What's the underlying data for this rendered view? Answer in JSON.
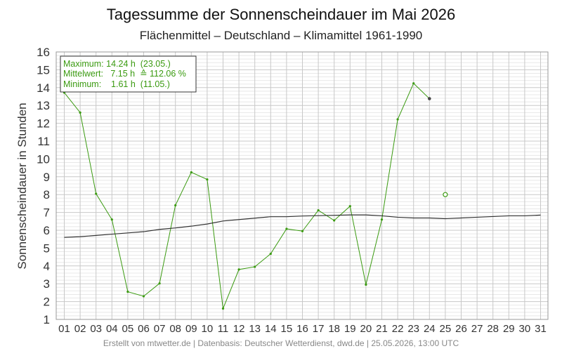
{
  "chart_data": {
    "type": "line",
    "title": "Tagessumme der Sonnenscheindauer im Mai 2026",
    "subtitle": "Flächenmittel – Deutschland – Klimamittel 1961-1990",
    "ylabel": "Sonnenscheindauer in Stunden",
    "xlabel": "",
    "ylim": [
      1,
      16
    ],
    "yticks": [
      1,
      2,
      3,
      4,
      5,
      6,
      7,
      8,
      9,
      10,
      11,
      12,
      13,
      14,
      15,
      16
    ],
    "categories": [
      "01",
      "02",
      "03",
      "04",
      "05",
      "06",
      "07",
      "08",
      "09",
      "10",
      "11",
      "12",
      "13",
      "14",
      "15",
      "16",
      "17",
      "18",
      "19",
      "20",
      "21",
      "22",
      "23",
      "24",
      "25",
      "26",
      "27",
      "28",
      "29",
      "30",
      "31"
    ],
    "grid": true,
    "series": [
      {
        "kind": "daily",
        "color": "#3a9a10",
        "values": [
          13.72,
          12.6,
          8.05,
          6.6,
          2.55,
          2.3,
          3.02,
          7.4,
          9.25,
          8.85,
          1.61,
          3.8,
          3.95,
          4.68,
          6.08,
          5.95,
          7.12,
          6.55,
          7.35,
          2.95,
          6.6,
          12.22,
          14.24,
          13.38,
          null,
          null,
          null,
          null,
          null,
          null,
          null
        ],
        "last_point_color": "#444444"
      },
      {
        "kind": "climate",
        "color": "#333333",
        "values": [
          5.6,
          5.64,
          5.71,
          5.78,
          5.85,
          5.92,
          6.05,
          6.13,
          6.23,
          6.35,
          6.52,
          6.6,
          6.68,
          6.76,
          6.76,
          6.8,
          6.82,
          6.84,
          6.86,
          6.86,
          6.81,
          6.73,
          6.69,
          6.69,
          6.65,
          6.69,
          6.73,
          6.77,
          6.81,
          6.81,
          6.85
        ]
      }
    ],
    "forecast_point": {
      "category": "25",
      "value": 8.0,
      "color": "#3a9a10"
    },
    "stats_box": {
      "line1": "Maximum: 14.24 h  (23.05.)",
      "line2": "Mittelwert:   7.15 h  ≙ 112.06 %",
      "line3": "Minimum:    1.61 h  (11.05.)",
      "color": "#3a9a10",
      "position": "top-left"
    }
  },
  "footer": "Erstellt von mtwetter.de | Datenbasis: Deutscher Wetterdienst, dwd.de | 25.05.2026, 13:00 UTC"
}
